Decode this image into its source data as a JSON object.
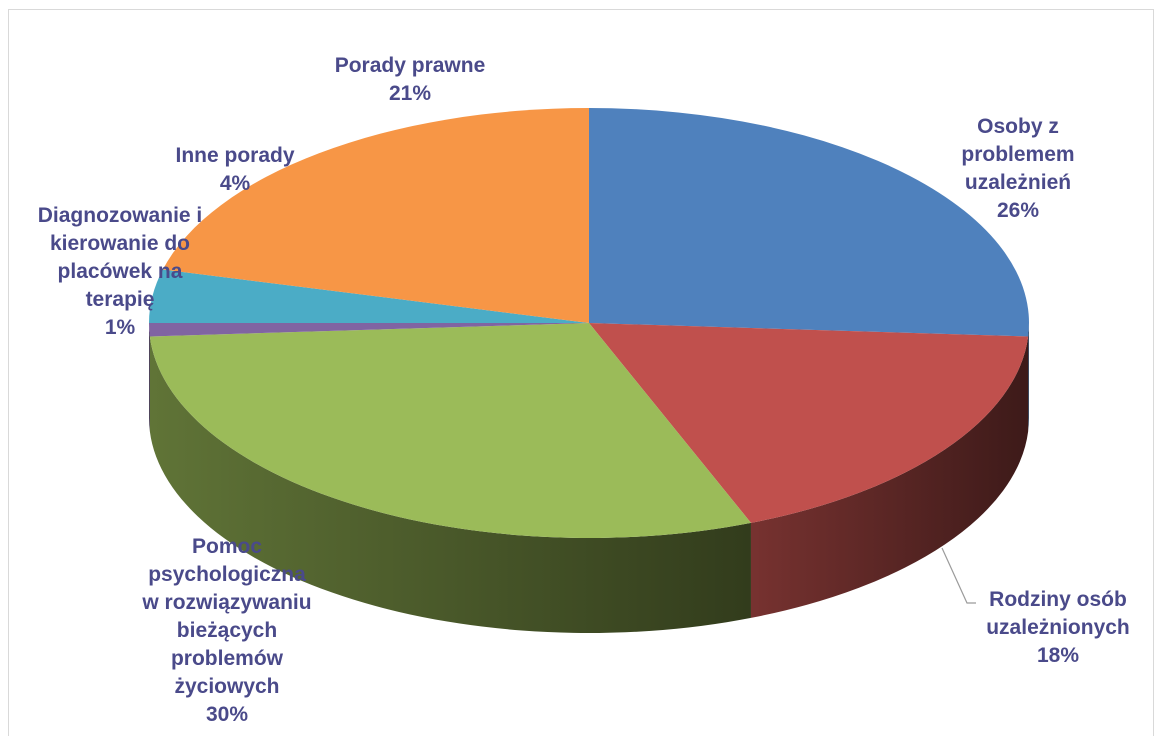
{
  "chart_data": {
    "type": "pie",
    "title": "",
    "style": "3d",
    "label_color": "#4a4a8a",
    "slices": [
      {
        "name": "Osoby z problemem uzależnień",
        "lines": [
          "Osoby z",
          "problemem",
          "uzależnień"
        ],
        "value": 26,
        "pct_label": "26%",
        "color": "#4f81bd"
      },
      {
        "name": "Rodziny osób uzależnionych",
        "lines": [
          "Rodziny osób",
          "uzależnionych"
        ],
        "value": 18,
        "pct_label": "18%",
        "color": "#c0504d"
      },
      {
        "name": "Pomoc psychologiczna w rozwiązywaniu bieżących problemów życiowych",
        "lines": [
          "Pomoc",
          "psychologiczna",
          "w rozwiązywaniu",
          "bieżących",
          "problemów",
          "życiowych"
        ],
        "value": 30,
        "pct_label": "30%",
        "color": "#9bbb59"
      },
      {
        "name": "Diagnozowanie i kierowanie do placówek na terapię",
        "lines": [
          "Diagnozowanie i",
          "kierowanie do",
          "placówek na",
          "terapię"
        ],
        "value": 1,
        "pct_label": "1%",
        "color": "#8064a2"
      },
      {
        "name": "Inne porady",
        "lines": [
          "Inne porady"
        ],
        "value": 4,
        "pct_label": "4%",
        "color": "#4bacc6"
      },
      {
        "name": "Porady prawne",
        "lines": [
          "Porady prawne"
        ],
        "value": 21,
        "pct_label": "21%",
        "color": "#f79646"
      }
    ]
  }
}
